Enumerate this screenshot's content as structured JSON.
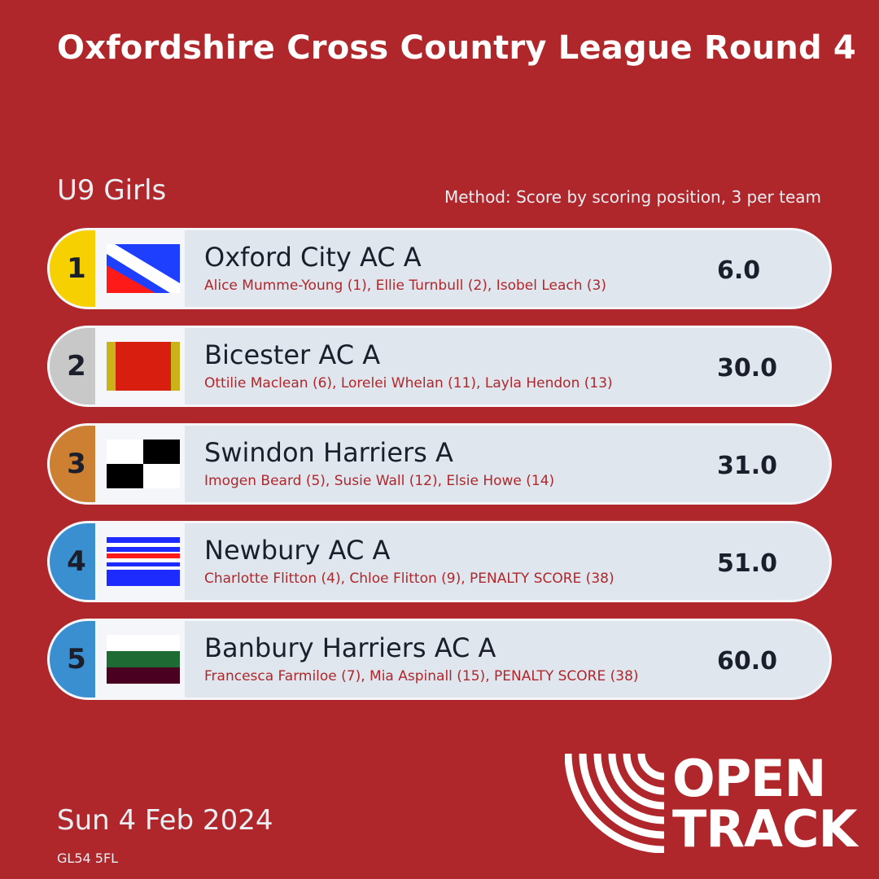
{
  "header": {
    "title": "Oxfordshire Cross Country League Round 4",
    "category": "U9 Girls",
    "method": "Method: Score by scoring position, 3 per team"
  },
  "results": [
    {
      "rank": "1",
      "team": "Oxford City AC A",
      "athletes": "Alice Mumme-Young (1), Ellie Turnbull (2), Isobel Leach (3)",
      "score": "6.0",
      "rank_color": "#f6d000",
      "flag_icon": "oxford-city-flag-icon"
    },
    {
      "rank": "2",
      "team": "Bicester AC A",
      "athletes": "Ottilie Maclean (6), Lorelei Whelan (11), Layla Hendon (13)",
      "score": "30.0",
      "rank_color": "#c8c8c8",
      "flag_icon": "bicester-flag-icon"
    },
    {
      "rank": "3",
      "team": "Swindon Harriers A",
      "athletes": "Imogen Beard (5), Susie Wall (12), Elsie Howe (14)",
      "score": "31.0",
      "rank_color": "#cd7f32",
      "flag_icon": "swindon-flag-icon"
    },
    {
      "rank": "4",
      "team": "Newbury AC A",
      "athletes": "Charlotte Flitton (4), Chloe Flitton (9), PENALTY SCORE (38)",
      "score": "51.0",
      "rank_color": "#3a8fd0",
      "flag_icon": "newbury-flag-icon"
    },
    {
      "rank": "5",
      "team": "Banbury Harriers AC A",
      "athletes": "Francesca Farmiloe (7), Mia Aspinall (15), PENALTY SCORE (38)",
      "score": "60.0",
      "rank_color": "#3a8fd0",
      "flag_icon": "banbury-flag-icon"
    }
  ],
  "footer": {
    "date": "Sun 4 Feb 2024",
    "postcode": "GL54 5FL",
    "logo_line1": "OPEN",
    "logo_line2": "TRACK"
  },
  "colors": {
    "background": "#b0272b",
    "row_background": "#dfe6ee",
    "athlete_text": "#b0272b"
  }
}
